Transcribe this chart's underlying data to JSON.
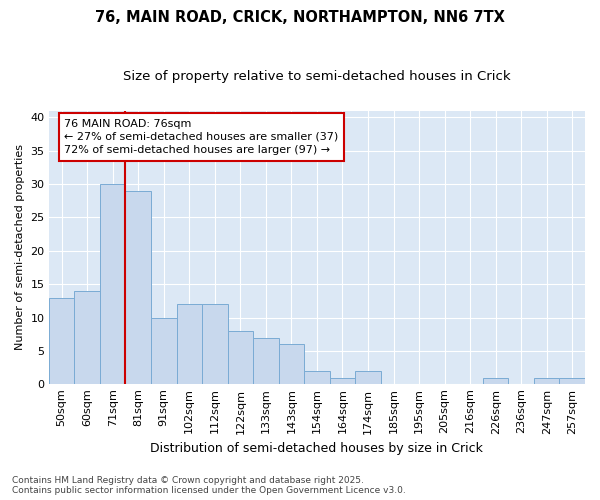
{
  "title1": "76, MAIN ROAD, CRICK, NORTHAMPTON, NN6 7TX",
  "title2": "Size of property relative to semi-detached houses in Crick",
  "xlabel": "Distribution of semi-detached houses by size in Crick",
  "ylabel": "Number of semi-detached properties",
  "categories": [
    "50sqm",
    "60sqm",
    "71sqm",
    "81sqm",
    "91sqm",
    "102sqm",
    "112sqm",
    "122sqm",
    "133sqm",
    "143sqm",
    "154sqm",
    "164sqm",
    "174sqm",
    "185sqm",
    "195sqm",
    "205sqm",
    "216sqm",
    "226sqm",
    "236sqm",
    "247sqm",
    "257sqm"
  ],
  "values": [
    13,
    14,
    30,
    29,
    10,
    12,
    12,
    8,
    7,
    6,
    2,
    1,
    2,
    0,
    0,
    0,
    0,
    1,
    0,
    1,
    1
  ],
  "bar_color": "#c8d8ed",
  "bar_edge_color": "#7aabd4",
  "vline_x": 2.5,
  "vline_color": "#cc0000",
  "annotation_line1": "76 MAIN ROAD: 76sqm",
  "annotation_line2": "← 27% of semi-detached houses are smaller (37)",
  "annotation_line3": "72% of semi-detached houses are larger (97) →",
  "ylim": [
    0,
    41
  ],
  "yticks": [
    0,
    5,
    10,
    15,
    20,
    25,
    30,
    35,
    40
  ],
  "footer": "Contains HM Land Registry data © Crown copyright and database right 2025.\nContains public sector information licensed under the Open Government Licence v3.0.",
  "bg_color": "#ffffff",
  "plot_bg_color": "#dce8f5",
  "grid_color": "#ffffff",
  "title1_fontsize": 10.5,
  "title2_fontsize": 9.5,
  "xlabel_fontsize": 9,
  "ylabel_fontsize": 8,
  "tick_fontsize": 8,
  "footer_fontsize": 6.5,
  "ann_fontsize": 8
}
